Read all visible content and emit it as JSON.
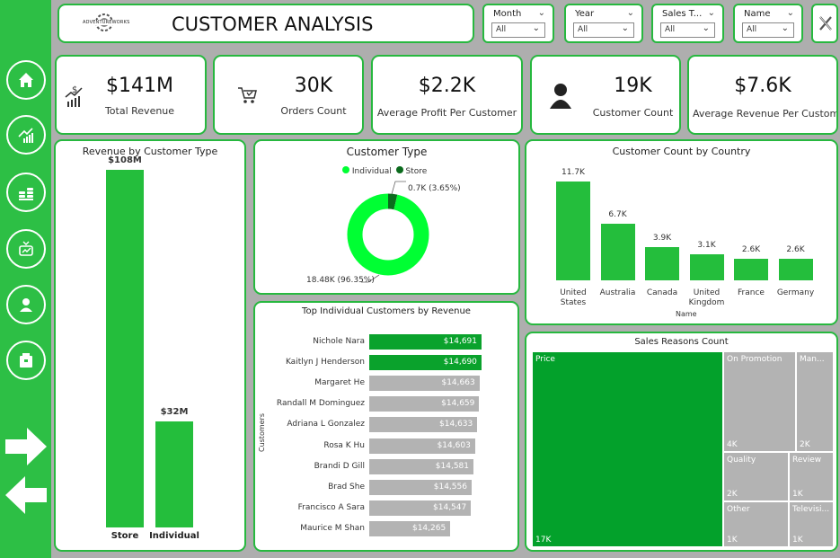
{
  "header": {
    "title": "CUSTOMER ANALYSIS",
    "logo_text": "ADVENTUREWORKS"
  },
  "slicers": [
    {
      "label": "Month",
      "value": "All"
    },
    {
      "label": "Year",
      "value": "All"
    },
    {
      "label": "Sales T...",
      "value": "All"
    },
    {
      "label": "Name",
      "value": "All"
    }
  ],
  "kpis": [
    {
      "value": "$141M",
      "label": "Total Revenue"
    },
    {
      "value": "30K",
      "label": "Orders Count"
    },
    {
      "value": "$2.2K",
      "label": "Average Profit Per Customer"
    },
    {
      "value": "19K",
      "label": "Customer Count"
    },
    {
      "value": "$7.6K",
      "label": "Average Revenue Per Customer"
    }
  ],
  "revenue_by_type": {
    "title": "Revenue by Customer Type",
    "chart_data": {
      "type": "bar",
      "categories": [
        "Store",
        "Individual"
      ],
      "values": [
        108,
        32
      ],
      "value_labels": [
        "$108M",
        "$32M"
      ],
      "unit": "$M",
      "ylim": [
        0,
        108
      ]
    }
  },
  "customer_type": {
    "title": "Customer Type",
    "legend": [
      "Individual",
      "Store"
    ],
    "colors": [
      "#00ff33",
      "#0b6b1d"
    ],
    "chart_data": {
      "type": "pie",
      "categories": [
        "Individual",
        "Store"
      ],
      "values": [
        18.48,
        0.7
      ],
      "percent": [
        96.35,
        3.65
      ]
    },
    "labels": [
      "0.7K (3.65%)",
      "18.48K (96.35%)"
    ]
  },
  "country": {
    "title": "Customer Count by Country",
    "xlabel": "Name",
    "chart_data": {
      "type": "bar",
      "categories": [
        "United States",
        "Australia",
        "Canada",
        "United Kingdom",
        "France",
        "Germany"
      ],
      "values": [
        11.7,
        6.7,
        3.9,
        3.1,
        2.6,
        2.6
      ],
      "value_labels": [
        "11.7K",
        "6.7K",
        "3.9K",
        "3.1K",
        "2.6K",
        "2.6K"
      ],
      "unit": "K",
      "ylim": [
        0,
        11.7
      ]
    }
  },
  "top_customers": {
    "title": "Top Individual Customers by Revenue",
    "ylabel": "Customers",
    "chart_data": {
      "type": "bar",
      "categories": [
        "Nichole Nara",
        "Kaitlyn J Henderson",
        "Margaret He",
        "Randall M Dominguez",
        "Adriana L Gonzalez",
        "Rosa K Hu",
        "Brandi D Gill",
        "Brad She",
        "Francisco A Sara",
        "Maurice M Shan"
      ],
      "values": [
        14691,
        14690,
        14663,
        14659,
        14633,
        14603,
        14581,
        14556,
        14547,
        14265
      ],
      "value_labels": [
        "$14,691",
        "$14,690",
        "$14,663",
        "$14,659",
        "$14,633",
        "$14,603",
        "$14,581",
        "$14,556",
        "$14,547",
        "$14,265"
      ],
      "highlight_count": 2
    }
  },
  "sales_reasons": {
    "title": "Sales Reasons Count",
    "chart_data": {
      "type": "treemap",
      "categories": [
        "Price",
        "On Promotion",
        "Manufacturer",
        "Quality",
        "Review",
        "Other",
        "Television Advertisement"
      ],
      "display_names": [
        "Price",
        "On Promotion",
        "Man...",
        "Quality",
        "Review",
        "Other",
        "Televisi..."
      ],
      "value_labels": [
        "17K",
        "4K",
        "2K",
        "2K",
        "1K",
        "1K",
        "1K"
      ],
      "values": [
        17,
        4,
        2,
        2,
        1,
        1,
        1
      ]
    }
  }
}
